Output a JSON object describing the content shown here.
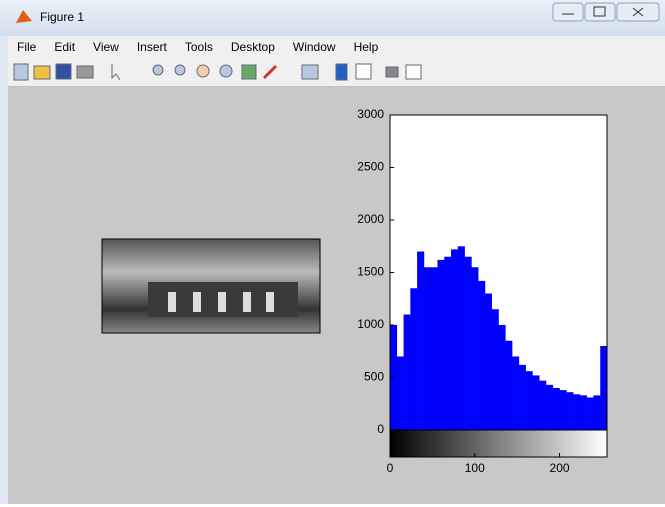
{
  "window": {
    "title": "Figure 1",
    "menu": [
      "File",
      "Edit",
      "View",
      "Insert",
      "Tools",
      "Desktop",
      "Window",
      "Help"
    ]
  },
  "chart_data": {
    "type": "histogram",
    "color": "#0000ff",
    "bins": [
      0,
      8,
      16,
      24,
      32,
      40,
      48,
      56,
      64,
      72,
      80,
      88,
      96,
      104,
      112,
      120,
      128,
      136,
      144,
      152,
      160,
      168,
      176,
      184,
      192,
      200,
      208,
      216,
      224,
      232,
      240,
      248,
      256
    ],
    "values": [
      1000,
      700,
      1100,
      1350,
      1700,
      1550,
      1550,
      1620,
      1650,
      1720,
      1750,
      1650,
      1550,
      1420,
      1300,
      1150,
      1000,
      850,
      700,
      620,
      560,
      520,
      470,
      430,
      400,
      380,
      360,
      340,
      330,
      310,
      330,
      800
    ],
    "xlim": [
      0,
      256
    ],
    "ylim": [
      0,
      3000
    ],
    "xticks": [
      0,
      100,
      200
    ],
    "yticks": [
      0,
      500,
      1000,
      1500,
      2000,
      2500,
      3000
    ]
  }
}
